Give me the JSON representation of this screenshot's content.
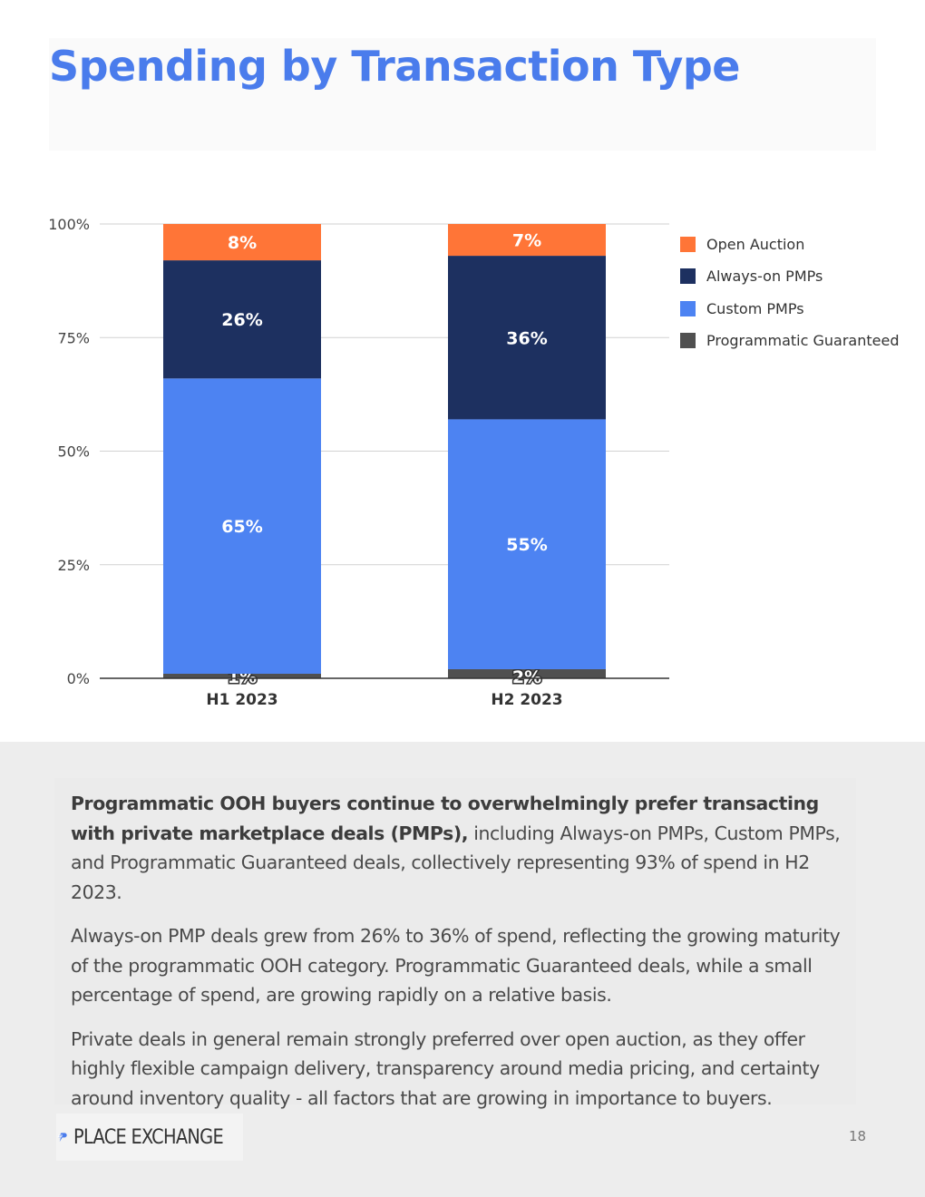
{
  "page": {
    "title": "Spending by Transaction Type",
    "page_number": "18"
  },
  "chart_data": {
    "type": "bar",
    "stacked": true,
    "categories": [
      "H1 2023",
      "H2 2023"
    ],
    "series": [
      {
        "name": "Programmatic Guaranteed",
        "color": "#505050",
        "values": [
          1,
          2
        ],
        "labels": [
          "1%",
          "2%"
        ]
      },
      {
        "name": "Custom PMPs",
        "color": "#4d83f2",
        "values": [
          65,
          55
        ],
        "labels": [
          "65%",
          "55%"
        ]
      },
      {
        "name": "Always-on PMPs",
        "color": "#1d3060",
        "values": [
          26,
          36
        ],
        "labels": [
          "26%",
          "36%"
        ]
      },
      {
        "name": "Open Auction",
        "color": "#ff7537",
        "values": [
          8,
          7
        ],
        "labels": [
          "8%",
          "7%"
        ]
      }
    ],
    "legend_order": [
      "Open Auction",
      "Always-on PMPs",
      "Custom PMPs",
      "Programmatic Guaranteed"
    ],
    "y_ticks": [
      "0%",
      "25%",
      "50%",
      "75%",
      "100%"
    ],
    "ylim": [
      0,
      100
    ],
    "title": "",
    "xlabel": "",
    "ylabel": "",
    "legend_position": "right"
  },
  "body": {
    "p1_bold": "Programmatic OOH buyers continue to overwhelmingly prefer transacting with private marketplace deals (PMPs),",
    "p1_rest": " including Always-on PMPs, Custom PMPs, and Programmatic Guaranteed deals, collectively representing 93% of spend in H2 2023.",
    "p2": "Always-on PMP deals grew from 26% to 36% of spend, reflecting the growing maturity of the programmatic OOH category. Programmatic Guaranteed deals, while a small percentage of spend, are growing rapidly on a relative basis.",
    "p3": "Private deals in general remain strongly preferred over open auction, as they offer highly flexible campaign delivery, transparency around media pricing, and certainty around inventory quality - all factors that are growing in importance to buyers."
  },
  "footer": {
    "logo_text": "PLACE EXCHANGE"
  }
}
